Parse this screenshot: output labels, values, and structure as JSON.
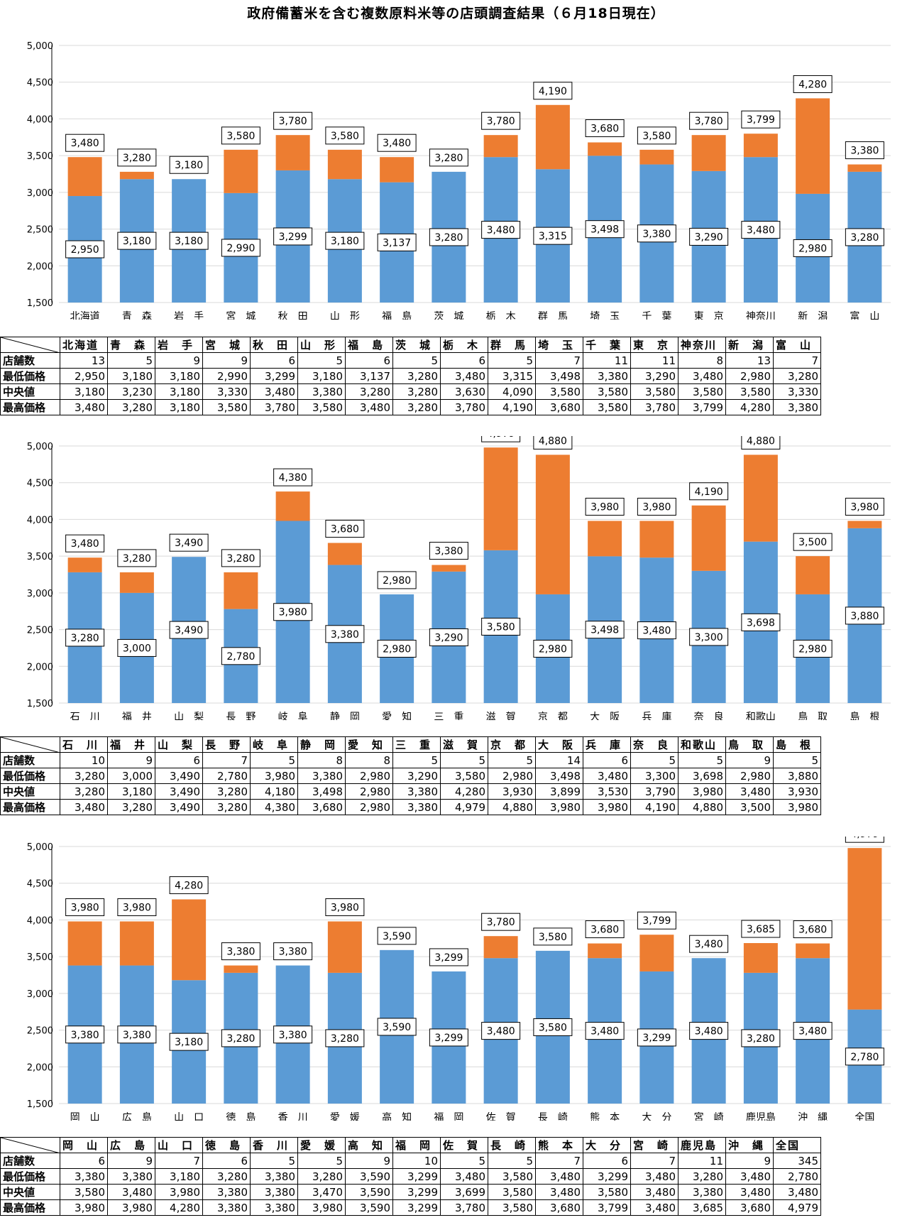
{
  "title": "政府備蓄米を含む複数原料米等の店頭調査結果（６月18日現在）",
  "row_labels": [
    "店舗数",
    "最低価格",
    "中央値",
    "最高価格"
  ],
  "colors": {
    "low": "#5B9BD5",
    "high": "#ED7D31",
    "grid": "#D9D9D9"
  },
  "chart_data": [
    {
      "type": "bar",
      "stacked": true,
      "ylim": [
        1500,
        5000
      ],
      "yticks": [
        1500,
        2000,
        2500,
        3000,
        3500,
        4000,
        4500,
        5000
      ],
      "grid": true,
      "categories": [
        "北海道",
        "青　森",
        "岩　手",
        "宮　城",
        "秋　田",
        "山　形",
        "福　島",
        "茨　城",
        "栃　木",
        "群　馬",
        "埼　玉",
        "千　葉",
        "東　京",
        "神奈川",
        "新　潟",
        "富　山"
      ],
      "stores": [
        13,
        5,
        9,
        9,
        6,
        5,
        6,
        5,
        6,
        5,
        7,
        11,
        11,
        8,
        13,
        7
      ],
      "min": [
        2950,
        3180,
        3180,
        2990,
        3299,
        3180,
        3137,
        3280,
        3480,
        3315,
        3498,
        3380,
        3290,
        3480,
        2980,
        3280
      ],
      "median": [
        3180,
        3230,
        3180,
        3330,
        3480,
        3380,
        3280,
        3280,
        3630,
        4090,
        3580,
        3580,
        3580,
        3580,
        3580,
        3330
      ],
      "max": [
        3480,
        3280,
        3180,
        3580,
        3780,
        3580,
        3480,
        3280,
        3780,
        4190,
        3680,
        3580,
        3780,
        3799,
        4280,
        3380
      ],
      "min_labels": [
        "2,950",
        "3,180",
        "3,180",
        "2,990",
        "3,299",
        "3,180",
        "3,137",
        "3,280",
        "3,480",
        "3,315",
        "3,498",
        "3,380",
        "3,290",
        "3,480",
        "2,980",
        "3,280"
      ],
      "max_labels": [
        "3,480",
        "3,280",
        "3,180",
        "3,580",
        "3,780",
        "3,580",
        "3,480",
        "3,280",
        "3,780",
        "4,190",
        "3,680",
        "3,580",
        "3,780",
        "3,799",
        "4,280",
        "3,380"
      ],
      "stores_labels": [
        "13",
        "5",
        "9",
        "9",
        "6",
        "5",
        "6",
        "5",
        "6",
        "5",
        "7",
        "11",
        "11",
        "8",
        "13",
        "7"
      ],
      "median_labels": [
        "3,180",
        "3,230",
        "3,180",
        "3,330",
        "3,480",
        "3,380",
        "3,280",
        "3,280",
        "3,630",
        "4,090",
        "3,580",
        "3,580",
        "3,580",
        "3,580",
        "3,580",
        "3,330"
      ]
    },
    {
      "type": "bar",
      "stacked": true,
      "ylim": [
        1500,
        5000
      ],
      "yticks": [
        1500,
        2000,
        2500,
        3000,
        3500,
        4000,
        4500,
        5000
      ],
      "grid": true,
      "categories": [
        "石　川",
        "福　井",
        "山　梨",
        "長　野",
        "岐　阜",
        "静　岡",
        "愛　知",
        "三　重",
        "滋　賀",
        "京　都",
        "大　阪",
        "兵　庫",
        "奈　良",
        "和歌山",
        "鳥　取",
        "島　根"
      ],
      "stores": [
        10,
        9,
        6,
        7,
        5,
        8,
        8,
        5,
        5,
        5,
        14,
        6,
        5,
        5,
        9,
        5
      ],
      "min": [
        3280,
        3000,
        3490,
        2780,
        3980,
        3380,
        2980,
        3290,
        3580,
        2980,
        3498,
        3480,
        3300,
        3698,
        2980,
        3880
      ],
      "median": [
        3280,
        3180,
        3490,
        3280,
        4180,
        3498,
        2980,
        3380,
        4280,
        3930,
        3899,
        3530,
        3790,
        3980,
        3480,
        3930
      ],
      "max": [
        3480,
        3280,
        3490,
        3280,
        4380,
        3680,
        2980,
        3380,
        4979,
        4880,
        3980,
        3980,
        4190,
        4880,
        3500,
        3980
      ],
      "min_labels": [
        "3,280",
        "3,000",
        "3,490",
        "2,780",
        "3,980",
        "3,380",
        "2,980",
        "3,290",
        "3,580",
        "2,980",
        "3,498",
        "3,480",
        "3,300",
        "3,698",
        "2,980",
        "3,880"
      ],
      "max_labels": [
        "3,480",
        "3,280",
        "3,490",
        "3,280",
        "4,380",
        "3,680",
        "2,980",
        "3,380",
        "4,979",
        "4,880",
        "3,980",
        "3,980",
        "4,190",
        "4,880",
        "3,500",
        "3,980"
      ],
      "stores_labels": [
        "10",
        "9",
        "6",
        "7",
        "5",
        "8",
        "8",
        "5",
        "5",
        "5",
        "14",
        "6",
        "5",
        "5",
        "9",
        "5"
      ],
      "median_labels": [
        "3,280",
        "3,180",
        "3,490",
        "3,280",
        "4,180",
        "3,498",
        "2,980",
        "3,380",
        "4,280",
        "3,930",
        "3,899",
        "3,530",
        "3,790",
        "3,980",
        "3,480",
        "3,930"
      ]
    },
    {
      "type": "bar",
      "stacked": true,
      "ylim": [
        1500,
        5000
      ],
      "yticks": [
        1500,
        2000,
        2500,
        3000,
        3500,
        4000,
        4500,
        5000
      ],
      "grid": true,
      "categories": [
        "岡　山",
        "広　島",
        "山　口",
        "徳　島",
        "香　川",
        "愛　媛",
        "高　知",
        "福　岡",
        "佐　賀",
        "長　崎",
        "熊　本",
        "大　分",
        "宮　崎",
        "鹿児島",
        "沖　縄",
        "全国"
      ],
      "stores": [
        6,
        9,
        7,
        6,
        5,
        5,
        9,
        10,
        5,
        5,
        7,
        6,
        7,
        11,
        9,
        345
      ],
      "min": [
        3380,
        3380,
        3180,
        3280,
        3380,
        3280,
        3590,
        3299,
        3480,
        3580,
        3480,
        3299,
        3480,
        3280,
        3480,
        2780
      ],
      "median": [
        3580,
        3480,
        3980,
        3380,
        3380,
        3470,
        3590,
        3299,
        3699,
        3580,
        3480,
        3580,
        3480,
        3380,
        3480,
        3480
      ],
      "max": [
        3980,
        3980,
        4280,
        3380,
        3380,
        3980,
        3590,
        3299,
        3780,
        3580,
        3680,
        3799,
        3480,
        3685,
        3680,
        4979
      ],
      "min_labels": [
        "3,380",
        "3,380",
        "3,180",
        "3,280",
        "3,380",
        "3,280",
        "3,590",
        "3,299",
        "3,480",
        "3,580",
        "3,480",
        "3,299",
        "3,480",
        "3,280",
        "3,480",
        "2,780"
      ],
      "max_labels": [
        "3,980",
        "3,980",
        "4,280",
        "3,380",
        "3,380",
        "3,980",
        "3,590",
        "3,299",
        "3,780",
        "3,580",
        "3,680",
        "3,799",
        "3,480",
        "3,685",
        "3,680",
        "4,979"
      ],
      "stores_labels": [
        "6",
        "9",
        "7",
        "6",
        "5",
        "5",
        "9",
        "10",
        "5",
        "5",
        "7",
        "6",
        "7",
        "11",
        "9",
        "345"
      ],
      "median_labels": [
        "3,580",
        "3,480",
        "3,980",
        "3,380",
        "3,380",
        "3,470",
        "3,590",
        "3,299",
        "3,699",
        "3,580",
        "3,480",
        "3,580",
        "3,480",
        "3,380",
        "3,480",
        "3,480"
      ]
    }
  ]
}
